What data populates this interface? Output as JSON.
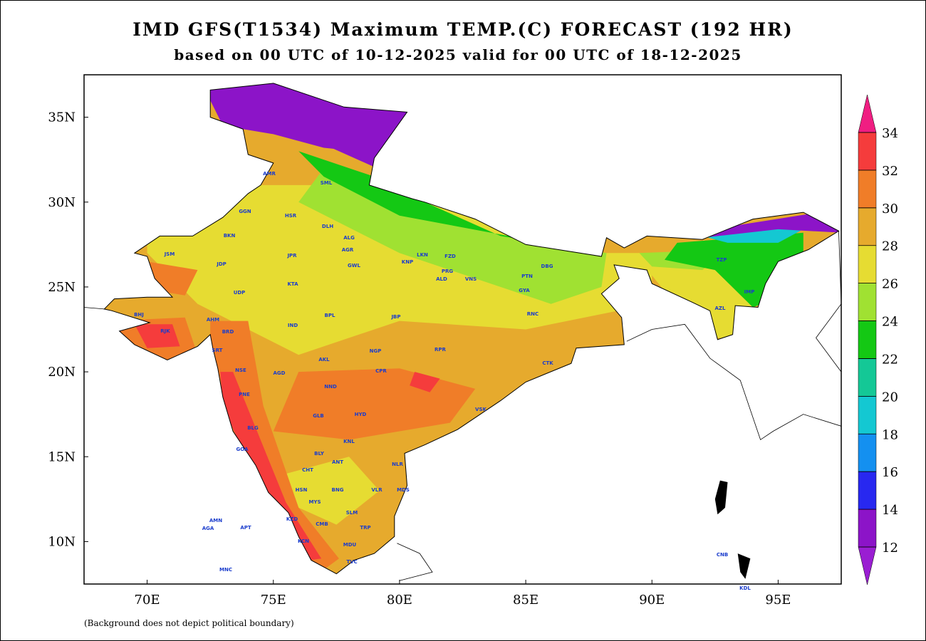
{
  "header": {
    "title": "IMD GFS(T1534) Maximum TEMP.(C) FORECAST (192 HR)",
    "subtitle": "based on 00 UTC of 10-12-2025 valid for 00 UTC of 18-12-2025"
  },
  "map": {
    "xlim": [
      67.5,
      97.5
    ],
    "ylim": [
      7.5,
      37.5
    ],
    "xticks": [
      {
        "value": 70,
        "label": "70E"
      },
      {
        "value": 75,
        "label": "75E"
      },
      {
        "value": 80,
        "label": "80E"
      },
      {
        "value": 85,
        "label": "85E"
      },
      {
        "value": 90,
        "label": "90E"
      },
      {
        "value": 95,
        "label": "95E"
      }
    ],
    "yticks": [
      {
        "value": 10,
        "label": "10N"
      },
      {
        "value": 15,
        "label": "15N"
      },
      {
        "value": 20,
        "label": "20N"
      },
      {
        "value": 25,
        "label": "25N"
      },
      {
        "value": 30,
        "label": "30N"
      },
      {
        "value": 35,
        "label": "35N"
      }
    ]
  },
  "colorbar": {
    "levels": [
      12,
      14,
      16,
      18,
      20,
      22,
      24,
      26,
      28,
      30,
      32,
      34
    ],
    "colors": [
      "#9a1ed2",
      "#8c14c8",
      "#2828f0",
      "#1490f0",
      "#14c8d2",
      "#14c896",
      "#14c814",
      "#a0e132",
      "#e6dc32",
      "#e6aa2d",
      "#f07d28",
      "#f53c3c",
      "#f01e82"
    ]
  },
  "stations": [
    "AMR",
    "GGN",
    "HSR",
    "BKN",
    "DLH",
    "ALG",
    "JSM",
    "JDP",
    "JPR",
    "AGR",
    "LKN",
    "FZD",
    "PTN",
    "DBG",
    "GWL",
    "KNP",
    "PRG",
    "ALD",
    "VNS",
    "KTA",
    "UDP",
    "BHJ",
    "RJK",
    "AHM",
    "BRD",
    "IND",
    "BPL",
    "JBP",
    "RNC",
    "GYA",
    "SRT",
    "NGP",
    "AKL",
    "RPR",
    "CTK",
    "NSE",
    "PNE",
    "AGD",
    "CPR",
    "HYD",
    "NND",
    "VSK",
    "GLB",
    "BLG",
    "GOA",
    "KNL",
    "BLY",
    "ANT",
    "CHT",
    "NLR",
    "MDS",
    "BNG",
    "HSN",
    "MYS",
    "VLR",
    "SLM",
    "KZD",
    "TRP",
    "CMB",
    "KCN",
    "MDU",
    "TVC",
    "AMN",
    "AGA",
    "APT",
    "MNC",
    "CNB",
    "KDL",
    "SML",
    "TZP",
    "IMP",
    "AZL"
  ],
  "footnote": "(Background does not depict political boundary)"
}
